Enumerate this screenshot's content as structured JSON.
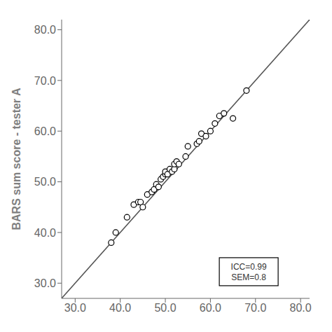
{
  "chart_data": {
    "type": "scatter",
    "ylabel": "BARS sum score - tester A",
    "xlim": [
      27.0,
      82.0
    ],
    "ylim": [
      27.0,
      82.0
    ],
    "xticks": [
      {
        "value": 30.0,
        "label": "30.0"
      },
      {
        "value": 40.0,
        "label": "40.0"
      },
      {
        "value": 50.0,
        "label": "50.0"
      },
      {
        "value": 60.0,
        "label": "60.0"
      },
      {
        "value": 70.0,
        "label": "70.0"
      },
      {
        "value": 80.0,
        "label": "80.0"
      }
    ],
    "yticks": [
      {
        "value": 30.0,
        "label": "30.0"
      },
      {
        "value": 40.0,
        "label": "40.0"
      },
      {
        "value": 50.0,
        "label": "50.0"
      },
      {
        "value": 60.0,
        "label": "60.0"
      },
      {
        "value": 70.0,
        "label": "70.0"
      },
      {
        "value": 80.0,
        "label": "80.0"
      }
    ],
    "series": [
      {
        "type": "line",
        "color": "#555555",
        "x": [
          27,
          82
        ],
        "values": [
          27,
          82
        ]
      },
      {
        "type": "scatter",
        "color": "black",
        "marker": "hollow_circle",
        "x": [
          38.0,
          39.0,
          41.5,
          43.0,
          44.0,
          44.5,
          45.0,
          46.0,
          47.0,
          47.5,
          48.0,
          48.5,
          49.0,
          49.5,
          50.0,
          50.0,
          50.5,
          51.0,
          51.5,
          52.0,
          52.0,
          52.5,
          53.0,
          54.5,
          55.0,
          57.0,
          57.5,
          58.0,
          59.0,
          60.0,
          61.0,
          62.0,
          63.0,
          65.0,
          68.0
        ],
        "values": [
          38.0,
          40.0,
          43.0,
          45.5,
          46.0,
          46.0,
          45.0,
          47.5,
          48.0,
          48.5,
          49.5,
          49.0,
          50.5,
          51.0,
          51.5,
          52.0,
          51.5,
          52.5,
          52.0,
          52.5,
          53.5,
          54.0,
          53.5,
          55.0,
          57.0,
          57.5,
          58.0,
          59.5,
          59.0,
          60.0,
          61.5,
          63.0,
          63.5,
          62.5,
          68.0
        ]
      }
    ],
    "annotations": [
      {
        "text": "ICC=0.99\nSEM=0.8",
        "x": 68.5,
        "y": 29.5
      }
    ]
  }
}
